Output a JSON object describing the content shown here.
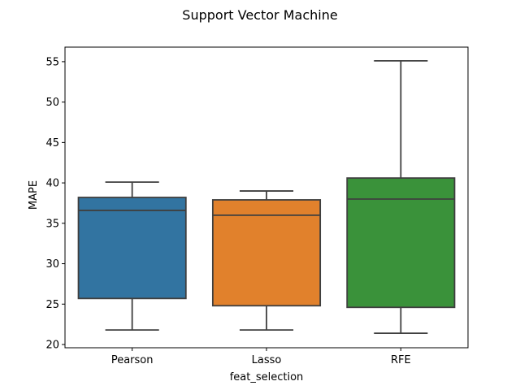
{
  "chart_data": {
    "type": "box",
    "title": "Support Vector Machine",
    "xlabel": "feat_selection",
    "ylabel": "MAPE",
    "ylim": [
      19.6,
      56.8
    ],
    "yticks": [
      20,
      25,
      30,
      35,
      40,
      45,
      50,
      55
    ],
    "grid": false,
    "categories": [
      "Pearson",
      "Lasso",
      "RFE"
    ],
    "boxes": [
      {
        "category": "Pearson",
        "whisker_low": 21.8,
        "q1": 25.7,
        "median": 36.6,
        "q3": 38.2,
        "whisker_high": 40.1,
        "color": "#3274a1"
      },
      {
        "category": "Lasso",
        "whisker_low": 21.8,
        "q1": 24.8,
        "median": 36.0,
        "q3": 37.9,
        "whisker_high": 39.0,
        "color": "#e1812c"
      },
      {
        "category": "RFE",
        "whisker_low": 21.4,
        "q1": 24.6,
        "median": 38.0,
        "q3": 40.6,
        "whisker_high": 55.1,
        "color": "#3a923a"
      }
    ]
  }
}
